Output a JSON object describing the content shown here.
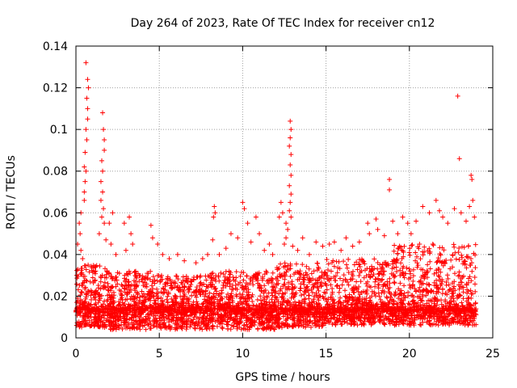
{
  "chart_data": {
    "type": "scatter",
    "title": "Day 264 of 2023, Rate Of TEC Index for receiver cn12",
    "xlabel": "GPS time / hours",
    "ylabel": "ROTI / TECUs",
    "xlim": [
      0,
      25
    ],
    "ylim": [
      0,
      0.14
    ],
    "x_ticks": [
      0,
      5,
      10,
      15,
      20,
      25
    ],
    "x_tick_labels": [
      "0",
      "5",
      "10",
      "15",
      "20",
      "25"
    ],
    "y_ticks": [
      0,
      0.02,
      0.04,
      0.06,
      0.08,
      0.1,
      0.12,
      0.14
    ],
    "y_tick_labels": [
      "0",
      "0.02",
      "0.04",
      "0.06",
      "0.08",
      "0.1",
      "0.12",
      "0.14"
    ],
    "grid": true,
    "marker": "+",
    "color": "#ff0000",
    "series": [
      {
        "name": "ROTI",
        "points": [
          [
            0.6,
            0.132
          ],
          [
            0.7,
            0.124
          ],
          [
            0.75,
            0.12
          ],
          [
            0.65,
            0.115
          ],
          [
            0.7,
            0.11
          ],
          [
            0.7,
            0.105
          ],
          [
            0.6,
            0.1
          ],
          [
            0.65,
            0.095
          ],
          [
            0.55,
            0.089
          ],
          [
            0.5,
            0.082
          ],
          [
            0.6,
            0.08
          ],
          [
            0.55,
            0.075
          ],
          [
            0.5,
            0.07
          ],
          [
            0.5,
            0.066
          ],
          [
            0.3,
            0.06
          ],
          [
            0.2,
            0.055
          ],
          [
            0.25,
            0.05
          ],
          [
            0.1,
            0.045
          ],
          [
            0.3,
            0.042
          ],
          [
            0.4,
            0.038
          ],
          [
            0.05,
            0.03
          ],
          [
            1.6,
            0.108
          ],
          [
            1.65,
            0.1
          ],
          [
            1.7,
            0.095
          ],
          [
            1.7,
            0.09
          ],
          [
            1.55,
            0.085
          ],
          [
            1.6,
            0.08
          ],
          [
            1.5,
            0.075
          ],
          [
            1.6,
            0.07
          ],
          [
            1.5,
            0.066
          ],
          [
            1.65,
            0.062
          ],
          [
            1.55,
            0.058
          ],
          [
            1.7,
            0.055
          ],
          [
            1.4,
            0.05
          ],
          [
            1.8,
            0.047
          ],
          [
            2.0,
            0.055
          ],
          [
            2.2,
            0.06
          ],
          [
            2.1,
            0.045
          ],
          [
            2.4,
            0.04
          ],
          [
            2.9,
            0.055
          ],
          [
            3.2,
            0.058
          ],
          [
            3.3,
            0.05
          ],
          [
            3.4,
            0.045
          ],
          [
            3.0,
            0.042
          ],
          [
            4.5,
            0.054
          ],
          [
            4.6,
            0.048
          ],
          [
            4.9,
            0.045
          ],
          [
            5.2,
            0.04
          ],
          [
            5.6,
            0.038
          ],
          [
            6.1,
            0.04
          ],
          [
            6.5,
            0.037
          ],
          [
            7.2,
            0.036
          ],
          [
            7.6,
            0.038
          ],
          [
            7.9,
            0.04
          ],
          [
            8.3,
            0.063
          ],
          [
            8.35,
            0.06
          ],
          [
            8.25,
            0.058
          ],
          [
            8.2,
            0.047
          ],
          [
            8.6,
            0.04
          ],
          [
            9.0,
            0.043
          ],
          [
            9.3,
            0.05
          ],
          [
            9.7,
            0.048
          ],
          [
            10.0,
            0.065
          ],
          [
            10.1,
            0.062
          ],
          [
            10.3,
            0.055
          ],
          [
            10.5,
            0.046
          ],
          [
            10.8,
            0.058
          ],
          [
            11.0,
            0.05
          ],
          [
            11.3,
            0.042
          ],
          [
            11.6,
            0.045
          ],
          [
            11.8,
            0.04
          ],
          [
            12.2,
            0.058
          ],
          [
            12.3,
            0.065
          ],
          [
            12.4,
            0.06
          ],
          [
            12.6,
            0.055
          ],
          [
            12.85,
            0.104
          ],
          [
            12.9,
            0.1
          ],
          [
            12.85,
            0.096
          ],
          [
            12.8,
            0.092
          ],
          [
            12.9,
            0.088
          ],
          [
            12.85,
            0.083
          ],
          [
            12.9,
            0.078
          ],
          [
            12.8,
            0.073
          ],
          [
            12.9,
            0.069
          ],
          [
            12.85,
            0.065
          ],
          [
            12.8,
            0.061
          ],
          [
            12.9,
            0.058
          ],
          [
            12.7,
            0.052
          ],
          [
            12.6,
            0.048
          ],
          [
            12.5,
            0.045
          ],
          [
            13.0,
            0.044
          ],
          [
            13.3,
            0.042
          ],
          [
            13.6,
            0.048
          ],
          [
            14.0,
            0.04
          ],
          [
            14.4,
            0.046
          ],
          [
            14.8,
            0.044
          ],
          [
            15.2,
            0.045
          ],
          [
            15.5,
            0.046
          ],
          [
            15.9,
            0.042
          ],
          [
            16.2,
            0.048
          ],
          [
            16.6,
            0.044
          ],
          [
            17.0,
            0.046
          ],
          [
            17.5,
            0.055
          ],
          [
            17.6,
            0.05
          ],
          [
            18.0,
            0.057
          ],
          [
            18.1,
            0.052
          ],
          [
            18.5,
            0.049
          ],
          [
            18.8,
            0.076
          ],
          [
            18.8,
            0.071
          ],
          [
            19.0,
            0.056
          ],
          [
            19.3,
            0.05
          ],
          [
            19.6,
            0.058
          ],
          [
            19.9,
            0.055
          ],
          [
            20.1,
            0.05
          ],
          [
            20.4,
            0.056
          ],
          [
            20.8,
            0.063
          ],
          [
            21.2,
            0.06
          ],
          [
            21.6,
            0.066
          ],
          [
            21.8,
            0.061
          ],
          [
            22.0,
            0.058
          ],
          [
            22.3,
            0.055
          ],
          [
            22.7,
            0.062
          ],
          [
            22.9,
            0.116
          ],
          [
            23.0,
            0.086
          ],
          [
            23.1,
            0.06
          ],
          [
            23.4,
            0.056
          ],
          [
            23.7,
            0.078
          ],
          [
            23.75,
            0.076
          ],
          [
            23.8,
            0.066
          ],
          [
            23.6,
            0.063
          ],
          [
            23.9,
            0.058
          ]
        ]
      }
    ],
    "dense_band": {
      "segments": [
        {
          "x": [
            0,
            2
          ],
          "y_range": [
            0.005,
            0.035
          ]
        },
        {
          "x": [
            2,
            5
          ],
          "y_range": [
            0.004,
            0.032
          ]
        },
        {
          "x": [
            5,
            8
          ],
          "y_range": [
            0.004,
            0.03
          ]
        },
        {
          "x": [
            8,
            12
          ],
          "y_range": [
            0.004,
            0.032
          ]
        },
        {
          "x": [
            12,
            15
          ],
          "y_range": [
            0.005,
            0.036
          ]
        },
        {
          "x": [
            15,
            19
          ],
          "y_range": [
            0.006,
            0.038
          ]
        },
        {
          "x": [
            19,
            24
          ],
          "y_range": [
            0.006,
            0.045
          ]
        }
      ]
    }
  }
}
